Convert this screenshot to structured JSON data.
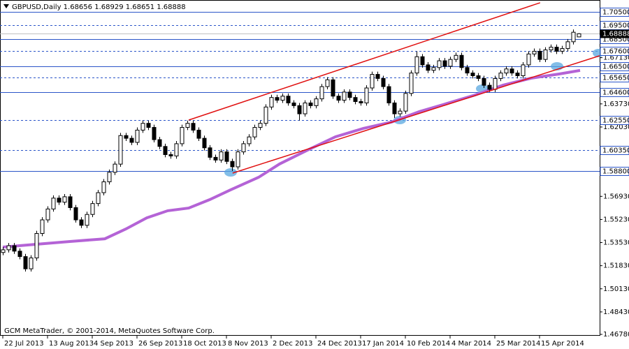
{
  "chart_data": {
    "type": "candlestick",
    "title": "GBPUSD,Daily  1.68656 1.68929 1.68651 1.68888",
    "footer": "GCM MetaTrader, © 2001-2014, MetaQuotes Software Corp.",
    "xlim": [
      -0.5,
      106.75
    ],
    "ylim": [
      1.4673,
      1.7137
    ],
    "xticks": [
      {
        "value": 0,
        "label": "22 Jul 2013"
      },
      {
        "value": 8,
        "label": "13 Aug 2013"
      },
      {
        "value": 16,
        "label": "4 Sep 2013"
      },
      {
        "value": 24,
        "label": "26 Sep 2013"
      },
      {
        "value": 32,
        "label": "18 Oct 2013"
      },
      {
        "value": 40,
        "label": "8 Nov 2013"
      },
      {
        "value": 48,
        "label": "2 Dec 2013"
      },
      {
        "value": 56,
        "label": "24 Dec 2013"
      },
      {
        "value": 64,
        "label": "17 Jan 2014"
      },
      {
        "value": 72,
        "label": "10 Feb 2014"
      },
      {
        "value": 80,
        "label": "4 Mar 2014"
      },
      {
        "value": 88,
        "label": "25 Mar 2014"
      },
      {
        "value": 96,
        "label": "15 Apr 2014"
      }
    ],
    "yticks": [
      {
        "value": 1.6713,
        "label": "1.67130"
      },
      {
        "value": 1.6373,
        "label": "1.63730"
      },
      {
        "value": 1.6203,
        "label": "1.62030"
      },
      {
        "value": 1.5693,
        "label": "1.56930"
      },
      {
        "value": 1.5523,
        "label": "1.55230"
      },
      {
        "value": 1.5353,
        "label": "1.53530"
      },
      {
        "value": 1.5183,
        "label": "1.51830"
      },
      {
        "value": 1.5013,
        "label": "1.50130"
      },
      {
        "value": 1.4843,
        "label": "1.48430"
      },
      {
        "value": 1.4678,
        "label": "1.46780"
      }
    ],
    "levels": [
      {
        "value": 1.705,
        "label": "1.70500",
        "style": "solid"
      },
      {
        "value": 1.695,
        "label": "1.69500",
        "style": "dashed"
      },
      {
        "value": 1.685,
        "label": "1.68500",
        "style": "solid"
      },
      {
        "value": 1.676,
        "label": "1.67600",
        "style": "dashed"
      },
      {
        "value": 1.665,
        "label": "1.66500",
        "style": "solid"
      },
      {
        "value": 1.6565,
        "label": "1.65650",
        "style": "dashed"
      },
      {
        "value": 1.646,
        "label": "1.64600",
        "style": "solid"
      },
      {
        "value": 1.6255,
        "label": "1.62550",
        "style": "dashed"
      },
      {
        "value": 1.6035,
        "label": "1.60350",
        "style": "dashed"
      },
      {
        "value": 1.588,
        "label": "1.58800",
        "style": "solid"
      }
    ],
    "level_color": "#2b55c8",
    "last_price": {
      "value": 1.68888,
      "label": "1.68888"
    },
    "candle_color": "#000000",
    "ohlc": [
      [
        1.528,
        1.532,
        1.526,
        1.53
      ],
      [
        1.53,
        1.535,
        1.528,
        1.533
      ],
      [
        1.533,
        1.535,
        1.527,
        1.529
      ],
      [
        1.529,
        1.531,
        1.523,
        1.525
      ],
      [
        1.525,
        1.527,
        1.514,
        1.516
      ],
      [
        1.516,
        1.526,
        1.514,
        1.524
      ],
      [
        1.524,
        1.544,
        1.522,
        1.542
      ],
      [
        1.542,
        1.554,
        1.54,
        1.552
      ],
      [
        1.552,
        1.562,
        1.55,
        1.56
      ],
      [
        1.56,
        1.57,
        1.558,
        1.568
      ],
      [
        1.568,
        1.57,
        1.563,
        1.565
      ],
      [
        1.565,
        1.571,
        1.563,
        1.569
      ],
      [
        1.569,
        1.571,
        1.559,
        1.561
      ],
      [
        1.561,
        1.563,
        1.55,
        1.552
      ],
      [
        1.552,
        1.554,
        1.546,
        1.548
      ],
      [
        1.548,
        1.558,
        1.546,
        1.556
      ],
      [
        1.556,
        1.566,
        1.554,
        1.564
      ],
      [
        1.564,
        1.574,
        1.562,
        1.572
      ],
      [
        1.572,
        1.582,
        1.57,
        1.58
      ],
      [
        1.58,
        1.589,
        1.578,
        1.587
      ],
      [
        1.587,
        1.595,
        1.585,
        1.593
      ],
      [
        1.593,
        1.616,
        1.591,
        1.614
      ],
      [
        1.614,
        1.616,
        1.61,
        1.612
      ],
      [
        1.612,
        1.614,
        1.607,
        1.609
      ],
      [
        1.609,
        1.62,
        1.607,
        1.618
      ],
      [
        1.618,
        1.625,
        1.616,
        1.623
      ],
      [
        1.623,
        1.625,
        1.618,
        1.62
      ],
      [
        1.62,
        1.622,
        1.609,
        1.611
      ],
      [
        1.611,
        1.613,
        1.604,
        1.606
      ],
      [
        1.606,
        1.608,
        1.598,
        1.6
      ],
      [
        1.6,
        1.602,
        1.597,
        1.599
      ],
      [
        1.599,
        1.61,
        1.597,
        1.608
      ],
      [
        1.608,
        1.622,
        1.606,
        1.62
      ],
      [
        1.62,
        1.625,
        1.618,
        1.623
      ],
      [
        1.623,
        1.625,
        1.616,
        1.618
      ],
      [
        1.618,
        1.62,
        1.61,
        1.612
      ],
      [
        1.612,
        1.614,
        1.603,
        1.605
      ],
      [
        1.605,
        1.607,
        1.596,
        1.598
      ],
      [
        1.598,
        1.6,
        1.594,
        1.596
      ],
      [
        1.596,
        1.604,
        1.594,
        1.602
      ],
      [
        1.602,
        1.604,
        1.593,
        1.595
      ],
      [
        1.595,
        1.597,
        1.588,
        1.591
      ],
      [
        1.591,
        1.604,
        1.589,
        1.602
      ],
      [
        1.602,
        1.61,
        1.6,
        1.608
      ],
      [
        1.608,
        1.615,
        1.606,
        1.613
      ],
      [
        1.613,
        1.622,
        1.611,
        1.62
      ],
      [
        1.62,
        1.625,
        1.618,
        1.623
      ],
      [
        1.623,
        1.637,
        1.621,
        1.635
      ],
      [
        1.635,
        1.644,
        1.633,
        1.642
      ],
      [
        1.642,
        1.644,
        1.638,
        1.64
      ],
      [
        1.64,
        1.645,
        1.638,
        1.643
      ],
      [
        1.643,
        1.645,
        1.636,
        1.638
      ],
      [
        1.638,
        1.64,
        1.634,
        1.636
      ],
      [
        1.636,
        1.638,
        1.625,
        1.63
      ],
      [
        1.63,
        1.64,
        1.628,
        1.638
      ],
      [
        1.638,
        1.64,
        1.634,
        1.636
      ],
      [
        1.636,
        1.643,
        1.634,
        1.641
      ],
      [
        1.641,
        1.652,
        1.639,
        1.65
      ],
      [
        1.65,
        1.657,
        1.648,
        1.655
      ],
      [
        1.655,
        1.657,
        1.641,
        1.643
      ],
      [
        1.643,
        1.645,
        1.638,
        1.64
      ],
      [
        1.64,
        1.648,
        1.638,
        1.646
      ],
      [
        1.646,
        1.648,
        1.64,
        1.642
      ],
      [
        1.642,
        1.644,
        1.637,
        1.639
      ],
      [
        1.639,
        1.641,
        1.636,
        1.638
      ],
      [
        1.638,
        1.651,
        1.636,
        1.649
      ],
      [
        1.649,
        1.661,
        1.647,
        1.659
      ],
      [
        1.659,
        1.661,
        1.654,
        1.656
      ],
      [
        1.656,
        1.658,
        1.648,
        1.65
      ],
      [
        1.65,
        1.652,
        1.636,
        1.638
      ],
      [
        1.638,
        1.64,
        1.627,
        1.63
      ],
      [
        1.63,
        1.634,
        1.628,
        1.632
      ],
      [
        1.632,
        1.647,
        1.63,
        1.645
      ],
      [
        1.645,
        1.662,
        1.643,
        1.66
      ],
      [
        1.66,
        1.676,
        1.658,
        1.672
      ],
      [
        1.672,
        1.674,
        1.664,
        1.666
      ],
      [
        1.666,
        1.668,
        1.66,
        1.662
      ],
      [
        1.662,
        1.666,
        1.66,
        1.664
      ],
      [
        1.664,
        1.671,
        1.662,
        1.669
      ],
      [
        1.669,
        1.671,
        1.663,
        1.665
      ],
      [
        1.665,
        1.672,
        1.663,
        1.67
      ],
      [
        1.67,
        1.675,
        1.668,
        1.673
      ],
      [
        1.673,
        1.675,
        1.662,
        1.664
      ],
      [
        1.664,
        1.666,
        1.658,
        1.66
      ],
      [
        1.66,
        1.662,
        1.656,
        1.658
      ],
      [
        1.658,
        1.66,
        1.654,
        1.656
      ],
      [
        1.656,
        1.658,
        1.649,
        1.651
      ],
      [
        1.651,
        1.653,
        1.646,
        1.648
      ],
      [
        1.648,
        1.658,
        1.646,
        1.656
      ],
      [
        1.656,
        1.662,
        1.654,
        1.66
      ],
      [
        1.66,
        1.665,
        1.658,
        1.663
      ],
      [
        1.663,
        1.665,
        1.658,
        1.66
      ],
      [
        1.66,
        1.662,
        1.656,
        1.658
      ],
      [
        1.658,
        1.668,
        1.656,
        1.666
      ],
      [
        1.666,
        1.676,
        1.664,
        1.674
      ],
      [
        1.674,
        1.678,
        1.672,
        1.676
      ],
      [
        1.676,
        1.678,
        1.668,
        1.67
      ],
      [
        1.67,
        1.679,
        1.668,
        1.677
      ],
      [
        1.677,
        1.681,
        1.675,
        1.679
      ],
      [
        1.679,
        1.681,
        1.674,
        1.676
      ],
      [
        1.676,
        1.68,
        1.674,
        1.678
      ],
      [
        1.678,
        1.685,
        1.676,
        1.683
      ],
      [
        1.683,
        1.692,
        1.681,
        1.69
      ],
      [
        1.68656,
        1.68929,
        1.68651,
        1.68888
      ]
    ],
    "moving_average": {
      "color": "#b463d6",
      "x": [
        0,
        5.75,
        12,
        18.25,
        22,
        25.75,
        29.5,
        33.25,
        37,
        40.75,
        45.75,
        49.5,
        54.5,
        59.5,
        64.5,
        69.5,
        74.5,
        79.5,
        84.5,
        89.5,
        94.5,
        99.5,
        103.25
      ],
      "values": [
        1.532,
        1.534,
        1.5361,
        1.5381,
        1.5453,
        1.5535,
        1.5587,
        1.5607,
        1.5669,
        1.5741,
        1.5833,
        1.5931,
        1.6033,
        1.6131,
        1.6193,
        1.6239,
        1.6316,
        1.6377,
        1.6439,
        1.6511,
        1.6562,
        1.6593,
        1.6619
      ]
    },
    "trendlines": {
      "color": "#e01010",
      "lines": [
        {
          "x": [
            33.25,
            96.1
          ],
          "values": [
            1.6254,
            1.7117
          ]
        },
        {
          "x": [
            41.1,
            106.75
          ],
          "values": [
            1.5864,
            1.6727
          ]
        }
      ]
    }
  }
}
